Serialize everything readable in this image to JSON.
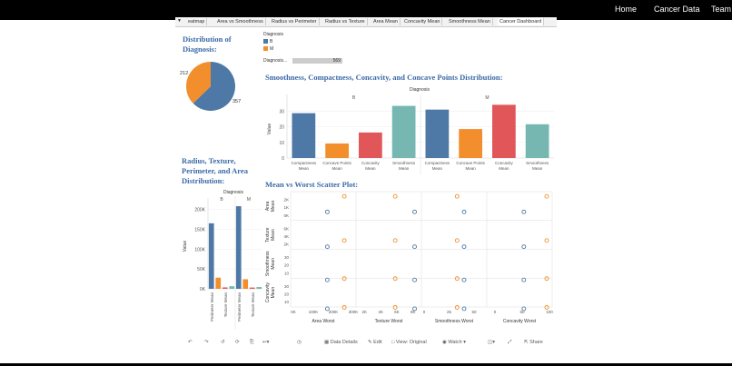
{
  "nav": {
    "home": "Home",
    "cancer_data": "Cancer Data",
    "team": "Team"
  },
  "tabs": [
    "eatmap",
    "Area vs Smoothness",
    "Radius vs Perimeter",
    "Radius vs Texture",
    "Area Mean",
    "Concavity Mean",
    "Smoothness Mean",
    "Cancer Dashboard"
  ],
  "titles": {
    "distribution": "Distribution of Diagnosis:",
    "scmc": "Smoothness, Compactness, Concavity, and Concave Points Distribution:",
    "rtpa": "Radius, Texture, Perimeter, and Area Distribution:",
    "scatter": "Mean vs Worst Scatter Plot:"
  },
  "legend": {
    "title": "Diagnosis",
    "items": [
      {
        "label": "B",
        "color": "#4e79a7"
      },
      {
        "label": "M",
        "color": "#f28e2b"
      }
    ]
  },
  "slider": {
    "label": "Diagnosis...",
    "value": "569"
  },
  "colors": {
    "blue": "#4e79a7",
    "orange": "#f28e2b",
    "red": "#e15759",
    "teal": "#76b7b2",
    "title": "#3b6aa8"
  },
  "toolbar": {
    "data_details": "Data Details",
    "edit": "Edit",
    "view": "View: Original",
    "watch": "Watch",
    "share": "Share"
  },
  "chart_data": [
    {
      "type": "pie",
      "title": "Distribution of Diagnosis:",
      "categories": [
        "B",
        "M"
      ],
      "values": [
        357,
        212
      ],
      "labels": [
        "357",
        "212"
      ]
    },
    {
      "type": "bar",
      "title": "Smoothness, Compactness, Concavity, and Concave Points Distribution:",
      "header": "Diagnosis",
      "groups": [
        "B",
        "M"
      ],
      "categories": [
        {
          "line1": "Compactness",
          "line2": "Mean",
          "group": "B",
          "value": 28.8,
          "color": "#4e79a7"
        },
        {
          "line1": "Concave Points",
          "line2": "Mean",
          "group": "B",
          "value": 9.3,
          "color": "#f28e2b"
        },
        {
          "line1": "Concavity",
          "line2": "Mean",
          "group": "B",
          "value": 16.4,
          "color": "#e15759"
        },
        {
          "line1": "Smoothness",
          "line2": "Mean",
          "group": "B",
          "value": 33.5,
          "color": "#76b7b2"
        },
        {
          "line1": "Compactness",
          "line2": "Mean",
          "group": "M",
          "value": 31.1,
          "color": "#4e79a7"
        },
        {
          "line1": "Concave Points",
          "line2": "Mean",
          "group": "M",
          "value": 18.6,
          "color": "#f28e2b"
        },
        {
          "line1": "Concavity",
          "line2": "Mean",
          "group": "M",
          "value": 34.2,
          "color": "#e15759"
        },
        {
          "line1": "Smoothness",
          "line2": "Mean",
          "group": "M",
          "value": 21.7,
          "color": "#76b7b2"
        }
      ],
      "ylabel": "Value",
      "ylim": [
        0,
        35
      ],
      "yticks": [
        0,
        10,
        20,
        30
      ]
    },
    {
      "type": "bar",
      "title": "Radius, Texture, Perimeter, and Area Distribution:",
      "header": "Diagnosis",
      "groups": [
        "B",
        "M"
      ],
      "categories": [
        {
          "label": "Perimeter Mean",
          "group": "B",
          "value": 165000,
          "color": "#4e79a7"
        },
        {
          "label": "",
          "group": "B",
          "value": 28000,
          "color": "#f28e2b"
        },
        {
          "label": "Texture Mean",
          "group": "B",
          "value": 3500,
          "color": "#e15759"
        },
        {
          "label": "",
          "group": "B",
          "value": 6500,
          "color": "#76b7b2"
        },
        {
          "label": "Perimeter Mean",
          "group": "M",
          "value": 208000,
          "color": "#4e79a7"
        },
        {
          "label": "",
          "group": "M",
          "value": 24000,
          "color": "#f28e2b"
        },
        {
          "label": "Texture Mean",
          "group": "M",
          "value": 3200,
          "color": "#e15759"
        },
        {
          "label": "",
          "group": "M",
          "value": 4500,
          "color": "#76b7b2"
        }
      ],
      "ylabel": "Value",
      "ylim": [
        0,
        215000
      ],
      "yticks": [
        0,
        50000,
        100000,
        150000,
        200000
      ],
      "yticklabels": [
        "0K",
        "50K",
        "100K",
        "150K",
        "200K"
      ]
    },
    {
      "type": "scatter",
      "title": "Mean vs Worst Scatter Plot:",
      "rows": [
        {
          "name": "Area Mean",
          "line1": "Area",
          "line2": "Mean",
          "ticks": [
            "0K",
            "1K",
            "2K"
          ],
          "ylim": [
            0,
            2.6
          ]
        },
        {
          "name": "Texture Mean",
          "line1": "Texture",
          "line2": "Mean",
          "ticks": [
            "2K",
            "4K",
            "6K"
          ],
          "ylim": [
            0.5,
            7
          ]
        },
        {
          "name": "Smoothness Mean",
          "line1": "Smoothness",
          "line2": "Mean",
          "ticks": [
            "10",
            "20",
            "30"
          ],
          "ylim": [
            5,
            35
          ]
        },
        {
          "name": "Concavity Mean",
          "line1": "Concavity",
          "line2": "Mean",
          "ticks": [
            "10",
            "20",
            "30"
          ],
          "ylim": [
            5,
            35
          ]
        }
      ],
      "cols": [
        {
          "name": "Area Worst",
          "ticks": [
            {
              "v": 0,
              "l": "0K"
            },
            {
              "v": 100,
              "l": "100K"
            },
            {
              "v": 200,
              "l": "200K"
            },
            {
              "v": 300,
              "l": "300K"
            }
          ],
          "xlim": [
            0,
            300
          ]
        },
        {
          "name": "Texture Worst",
          "ticks": [
            {
              "v": 2,
              "l": "2K"
            },
            {
              "v": 4,
              "l": "4K"
            },
            {
              "v": 6,
              "l": "6K"
            },
            {
              "v": 8,
              "l": "8K"
            }
          ],
          "xlim": [
            1.3,
            8.7
          ]
        },
        {
          "name": "Smoothness Worst",
          "ticks": [
            {
              "v": 0,
              "l": "0"
            },
            {
              "v": 25,
              "l": "25"
            },
            {
              "v": 50,
              "l": "50"
            }
          ],
          "xlim": [
            0,
            60
          ]
        },
        {
          "name": "Concavity Worst",
          "ticks": [
            {
              "v": 0,
              "l": "0"
            },
            {
              "v": 50,
              "l": "50"
            },
            {
              "v": 100,
              "l": "100"
            }
          ],
          "xlim": [
            -10,
            100
          ]
        }
      ],
      "points_B": [
        [
          170,
          0.7
        ],
        [
          8.2,
          0.7
        ],
        [
          40,
          0.7
        ],
        [
          53,
          0.7
        ]
      ],
      "points_M": [
        [
          255,
          2.3
        ],
        [
          5.8,
          2.3
        ],
        [
          33,
          2.3
        ],
        [
          95,
          2.3
        ]
      ],
      "series": [
        {
          "name": "B",
          "color": "#4e79a7"
        },
        {
          "name": "M",
          "color": "#f28e2b"
        }
      ]
    }
  ]
}
